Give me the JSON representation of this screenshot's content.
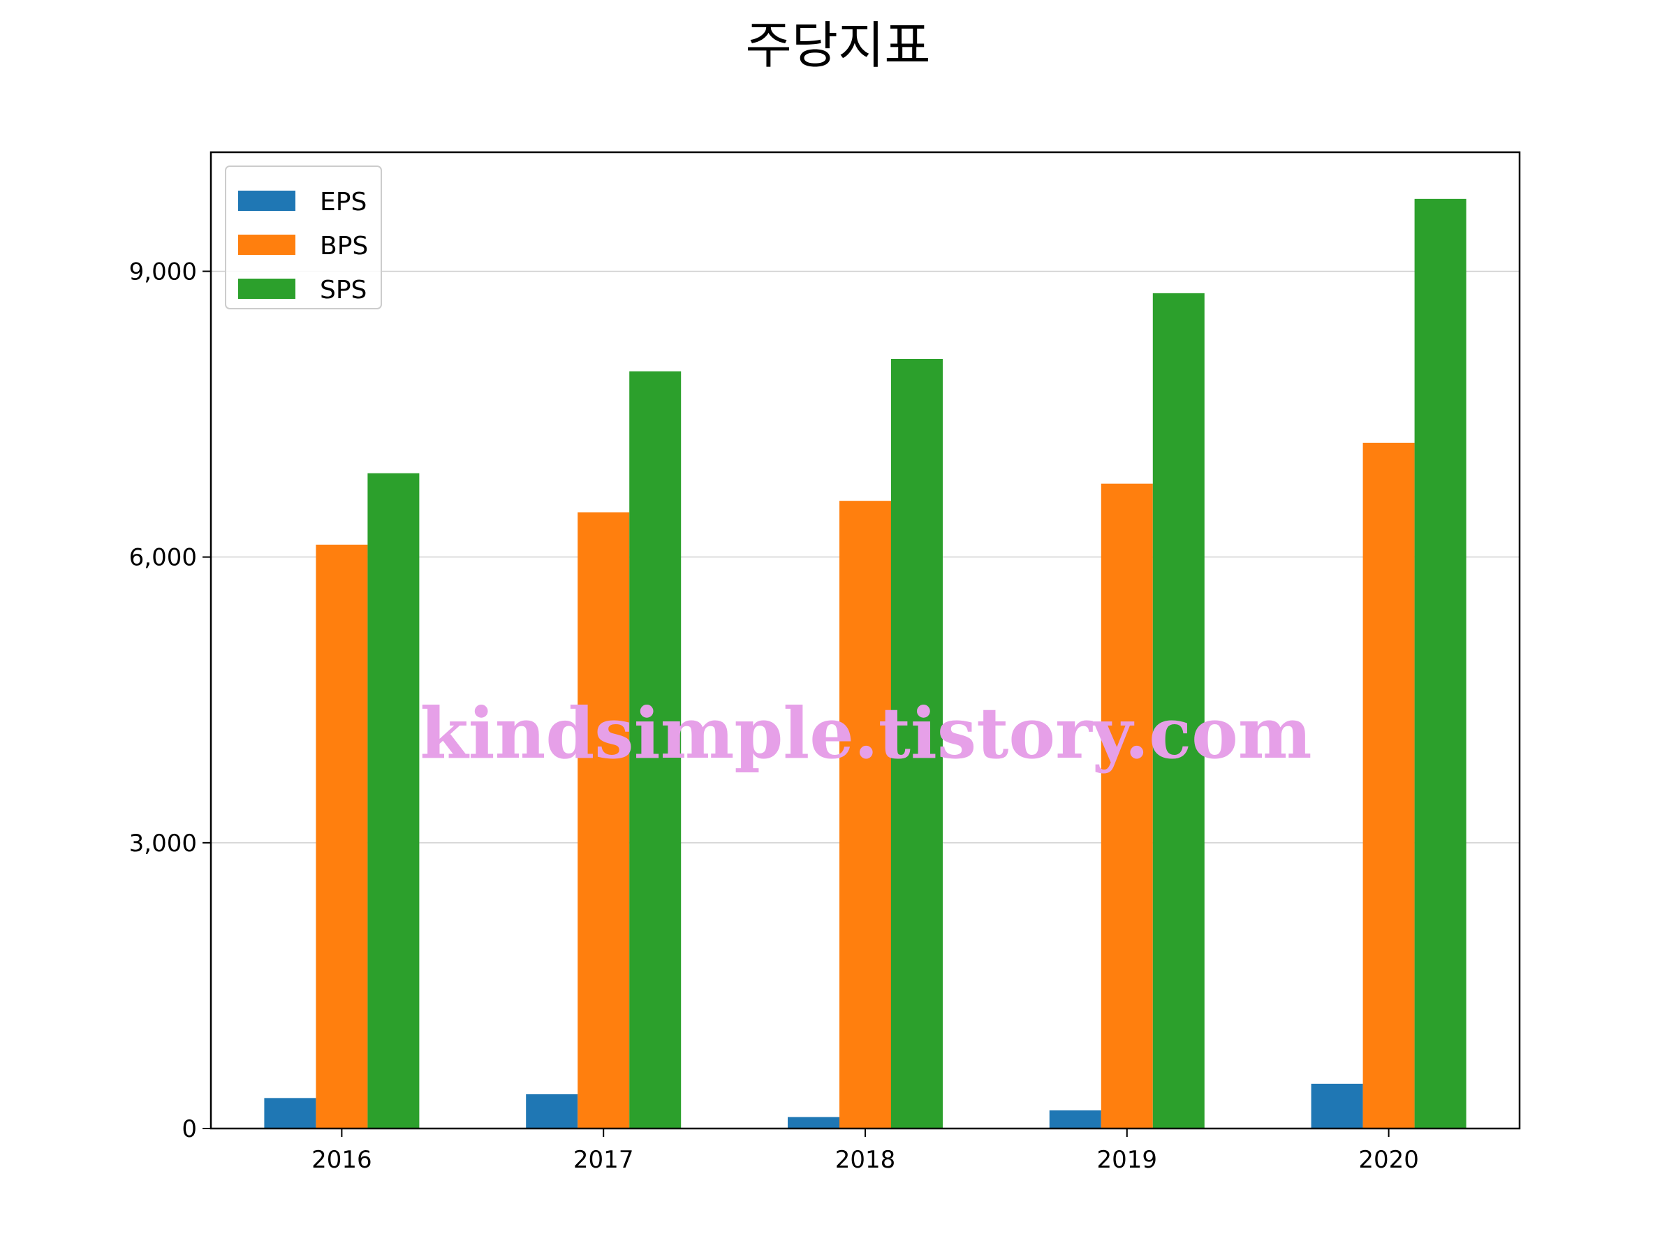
{
  "chart_data": {
    "type": "bar",
    "title": "주당지표",
    "xlabel": "",
    "ylabel": "",
    "categories": [
      "2016",
      "2017",
      "2018",
      "2019",
      "2020"
    ],
    "series": [
      {
        "name": "EPS",
        "color": "#1f77b4",
        "values": [
          320,
          360,
          120,
          190,
          470
        ]
      },
      {
        "name": "BPS",
        "color": "#ff7f0e",
        "values": [
          6130,
          6470,
          6590,
          6770,
          7200
        ]
      },
      {
        "name": "SPS",
        "color": "#2ca02c",
        "values": [
          6880,
          7950,
          8080,
          8770,
          9760
        ]
      }
    ],
    "ylim": [
      0,
      10250
    ],
    "yticks": [
      0,
      3000,
      6000,
      9000
    ],
    "ytick_labels": [
      "0",
      "3,000",
      "6,000",
      "9,000"
    ],
    "grid": "y",
    "legend_position": "top-left"
  },
  "watermark": "kindsimple.tistory.com"
}
